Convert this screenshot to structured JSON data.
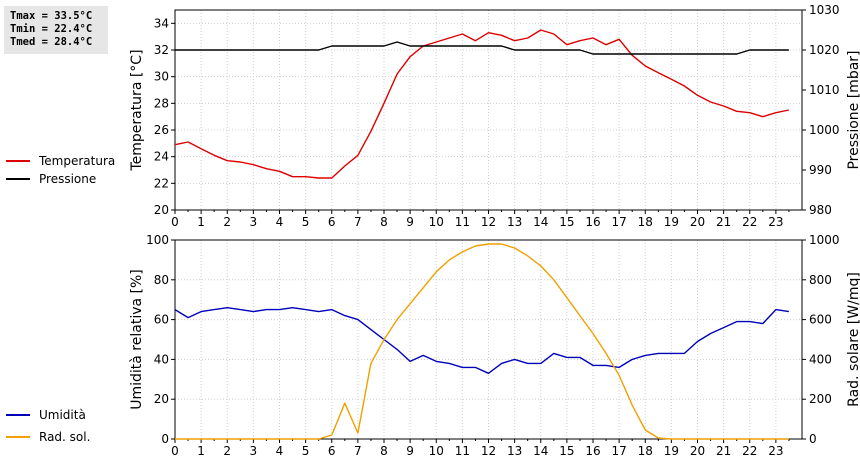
{
  "stats": {
    "tmax": "Tmax = 33.5°C",
    "tmin": "Tmin = 22.4°C",
    "tmed": "Tmed = 28.4°C"
  },
  "legend_top": [
    {
      "label": "Temperatura",
      "color": "#dd0000"
    },
    {
      "label": "Pressione",
      "color": "#000000"
    }
  ],
  "legend_bottom": [
    {
      "label": "Umidità",
      "color": "#0000bb"
    },
    {
      "label": "Rad. sol.",
      "color": "#f0a000"
    }
  ],
  "chart_data": [
    {
      "type": "line",
      "title": "",
      "xlabel": "",
      "xlim": [
        0,
        24
      ],
      "x_ticks": [
        0,
        1,
        2,
        3,
        4,
        5,
        6,
        7,
        8,
        9,
        10,
        11,
        12,
        13,
        14,
        15,
        16,
        17,
        18,
        19,
        20,
        21,
        22,
        23
      ],
      "ylabel_left": "Temperatura [°C]",
      "ylim_left": [
        20,
        35
      ],
      "y_ticks_left": [
        20,
        22,
        24,
        26,
        28,
        30,
        32,
        34
      ],
      "ylabel_right": "Pressione [mbar]",
      "ylim_right": [
        980,
        1030
      ],
      "y_ticks_right": [
        980,
        990,
        1000,
        1010,
        1020,
        1030
      ],
      "grid": true,
      "series": [
        {
          "name": "Temperatura",
          "axis": "left",
          "color": "#dd0000",
          "x": [
            0,
            0.5,
            1,
            1.5,
            2,
            2.5,
            3,
            3.5,
            4,
            4.5,
            5,
            5.5,
            6,
            6.5,
            7,
            7.5,
            8,
            8.5,
            9,
            9.5,
            10,
            10.5,
            11,
            11.5,
            12,
            12.5,
            13,
            13.5,
            14,
            14.5,
            15,
            15.5,
            16,
            16.5,
            17,
            17.5,
            18,
            18.5,
            19,
            19.5,
            20,
            20.5,
            21,
            21.5,
            22,
            22.5,
            23,
            23.5
          ],
          "values": [
            24.9,
            25.1,
            24.6,
            24.1,
            23.7,
            23.6,
            23.4,
            23.1,
            22.9,
            22.5,
            22.5,
            22.4,
            22.4,
            23.3,
            24.1,
            25.9,
            28.0,
            30.2,
            31.5,
            32.3,
            32.6,
            32.9,
            33.2,
            32.7,
            33.3,
            33.1,
            32.7,
            32.9,
            33.5,
            33.2,
            32.4,
            32.7,
            32.9,
            32.4,
            32.8,
            31.6,
            30.8,
            30.3,
            29.8,
            29.3,
            28.6,
            28.1,
            27.8,
            27.4,
            27.3,
            27.0,
            27.3,
            27.5
          ]
        },
        {
          "name": "Pressione",
          "axis": "right",
          "color": "#000000",
          "x": [
            0,
            0.5,
            1,
            1.5,
            2,
            2.5,
            3,
            3.5,
            4,
            4.5,
            5,
            5.5,
            6,
            6.5,
            7,
            7.5,
            8,
            8.5,
            9,
            9.5,
            10,
            10.5,
            11,
            11.5,
            12,
            12.5,
            13,
            13.5,
            14,
            14.5,
            15,
            15.5,
            16,
            16.5,
            17,
            17.5,
            18,
            18.5,
            19,
            19.5,
            20,
            20.5,
            21,
            21.5,
            22,
            22.5,
            23,
            23.5
          ],
          "values": [
            1020,
            1020,
            1020,
            1020,
            1020,
            1020,
            1020,
            1020,
            1020,
            1020,
            1020,
            1020,
            1021,
            1021,
            1021,
            1021,
            1021,
            1022,
            1021,
            1021,
            1021,
            1021,
            1021,
            1021,
            1021,
            1021,
            1020,
            1020,
            1020,
            1020,
            1020,
            1020,
            1019,
            1019,
            1019,
            1019,
            1019,
            1019,
            1019,
            1019,
            1019,
            1019,
            1019,
            1019,
            1020,
            1020,
            1020,
            1020
          ]
        }
      ]
    },
    {
      "type": "line",
      "title": "",
      "xlabel": "",
      "xlim": [
        0,
        24
      ],
      "x_ticks": [
        0,
        1,
        2,
        3,
        4,
        5,
        6,
        7,
        8,
        9,
        10,
        11,
        12,
        13,
        14,
        15,
        16,
        17,
        18,
        19,
        20,
        21,
        22,
        23
      ],
      "ylabel_left": "Umidità relativa [%]",
      "ylim_left": [
        0,
        100
      ],
      "y_ticks_left": [
        0,
        20,
        40,
        60,
        80,
        100
      ],
      "ylabel_right": "Rad. solare [W/mq]",
      "ylim_right": [
        0,
        1000
      ],
      "y_ticks_right": [
        0,
        200,
        400,
        600,
        800,
        1000
      ],
      "grid": true,
      "series": [
        {
          "name": "Umidità",
          "axis": "left",
          "color": "#0000bb",
          "x": [
            0,
            0.5,
            1,
            1.5,
            2,
            2.5,
            3,
            3.5,
            4,
            4.5,
            5,
            5.5,
            6,
            6.5,
            7,
            7.5,
            8,
            8.5,
            9,
            9.5,
            10,
            10.5,
            11,
            11.5,
            12,
            12.5,
            13,
            13.5,
            14,
            14.5,
            15,
            15.5,
            16,
            16.5,
            17,
            17.5,
            18,
            18.5,
            19,
            19.5,
            20,
            20.5,
            21,
            21.5,
            22,
            22.5,
            23,
            23.5
          ],
          "values": [
            65,
            61,
            64,
            65,
            66,
            65,
            64,
            65,
            65,
            66,
            65,
            64,
            65,
            62,
            60,
            55,
            50,
            45,
            39,
            42,
            39,
            38,
            36,
            36,
            33,
            38,
            40,
            38,
            38,
            43,
            41,
            41,
            37,
            37,
            36,
            40,
            42,
            43,
            43,
            43,
            49,
            53,
            56,
            59,
            59,
            58,
            65,
            64
          ]
        },
        {
          "name": "Rad. sol.",
          "axis": "right",
          "color": "#f0a000",
          "x": [
            0,
            0.5,
            1,
            1.5,
            2,
            2.5,
            3,
            3.5,
            4,
            4.5,
            5,
            5.5,
            6,
            6.5,
            7,
            7.5,
            8,
            8.5,
            9,
            9.5,
            10,
            10.5,
            11,
            11.5,
            12,
            12.5,
            13,
            13.5,
            14,
            14.5,
            15,
            15.5,
            16,
            16.5,
            17,
            17.5,
            18,
            18.5,
            19,
            19.5,
            20,
            20.5,
            21,
            21.5,
            22,
            22.5,
            23,
            23.5
          ],
          "values": [
            0,
            0,
            0,
            0,
            0,
            0,
            0,
            0,
            0,
            0,
            0,
            0,
            20,
            180,
            30,
            380,
            500,
            600,
            680,
            760,
            840,
            900,
            940,
            970,
            980,
            980,
            960,
            920,
            870,
            800,
            710,
            620,
            530,
            430,
            320,
            170,
            45,
            5,
            0,
            0,
            0,
            0,
            0,
            0,
            0,
            0,
            0,
            0
          ]
        }
      ]
    }
  ]
}
